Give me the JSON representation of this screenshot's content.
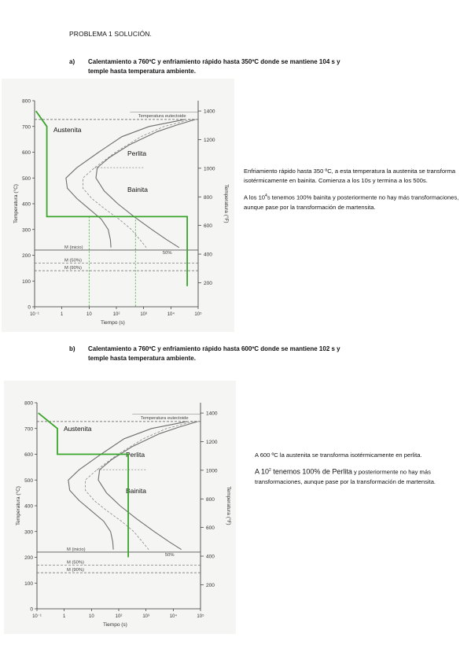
{
  "page": {
    "title": "PROBLEMA 1 SOLUCIÓN."
  },
  "section_a": {
    "letter": "a)",
    "line1": "Calentamiento a 760ºC y enfriamiento rápido hasta 350ºC donde se mantiene 104 s y",
    "line2": "temple hasta temperatura ambiente.",
    "desc_p1": "Enfriamiento rápido hasta 350 ºC, a esta temperatura la austenita se transforma isotérmicamente en bainita. Comienza a los 10s y termina a los 500s.",
    "desc_p2_prefix": "A los 10",
    "desc_p2_sup": "4",
    "desc_p2_suffix": "s tenemos 100% bainita y posteriormente no hay más transformaciones, aunque pase por la transformación de martensita.",
    "chart_labels": {
      "austenita": "Austenita",
      "perlita": "Perlita",
      "bainita": "Bainita"
    }
  },
  "section_b": {
    "letter": "b)",
    "line1": "Calentamiento a 760ºC y enfriamiento rápido hasta 600ºC donde se mantiene 102 s y",
    "line2": "temple hasta temperatura ambiente.",
    "desc_p1": "A 600 ºC la austenita se transforma isotérmicamente en perlita.",
    "desc_p2_big": "A 10",
    "desc_p2_sup": "2",
    "desc_p2_big2": " tenemos 100% de Perlita",
    "desc_p2_suffix": " y posteriormente no hay más transformaciones, aunque pase por la transformación de martensita.",
    "chart_labels": {
      "austenita": "Austenita",
      "perlita": "Perlita",
      "bainita": "Bainita"
    }
  },
  "chart_text": {
    "ylabel_c": "Temperatura (°C)",
    "ylabel_f": "Temperatura (°F)",
    "xlabel": "Tiempo (s)",
    "eutectoid": "Temperatura eutectoide",
    "m_start": "M (inicio)",
    "m_50": "M (50%)",
    "m_90": "M (90%)",
    "pct50": "50%",
    "y_ticks_c": [
      "800",
      "700",
      "600",
      "500",
      "400",
      "300",
      "200",
      "100",
      "0"
    ],
    "y_ticks_f": [
      "1400",
      "1200",
      "1000",
      "800",
      "600",
      "400",
      "200"
    ],
    "x_ticks": [
      "10⁻¹",
      "1",
      "10",
      "10²",
      "10³",
      "10⁴",
      "10⁵"
    ]
  },
  "colors": {
    "path": "#3aa52b",
    "curve": "#6f6f6f",
    "panel": "#f5f5f3"
  }
}
